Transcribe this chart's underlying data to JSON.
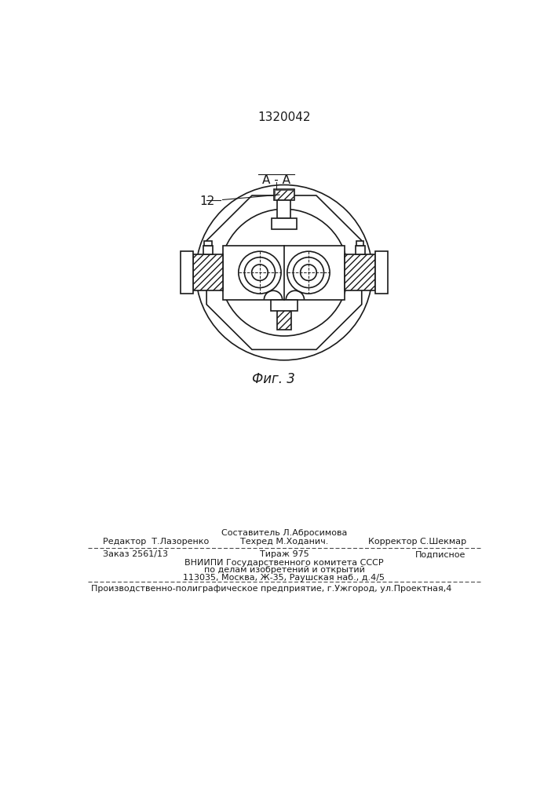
{
  "patent_number": "1320042",
  "fig_label": "Фиг. 3",
  "section_label": "А - А",
  "part_label": "12",
  "bg_color": "#ffffff",
  "line_color": "#1a1a1a",
  "footer_line1_left": "Редактор  Т.Лазоренко",
  "footer_line1_center": "Составитель Л.Абросимова",
  "footer_line1_center2": "Техред М.Ходанич.",
  "footer_line1_right": "Корректор С.Шекмар",
  "footer_line2_left": "Заказ 2561/13",
  "footer_line2_center": "Тираж 975",
  "footer_line2_right": "Подписное",
  "footer_line3": "ВНИИПИ Государственного комитета СССР",
  "footer_line4": "по делам изобретений и открытий",
  "footer_line5": "113035, Москва, Ж-35, Раушская наб., д.4/5",
  "footer_line6": "Производственно-полиграфическое предприятие, г.Ужгород, ул.Проектная,4"
}
